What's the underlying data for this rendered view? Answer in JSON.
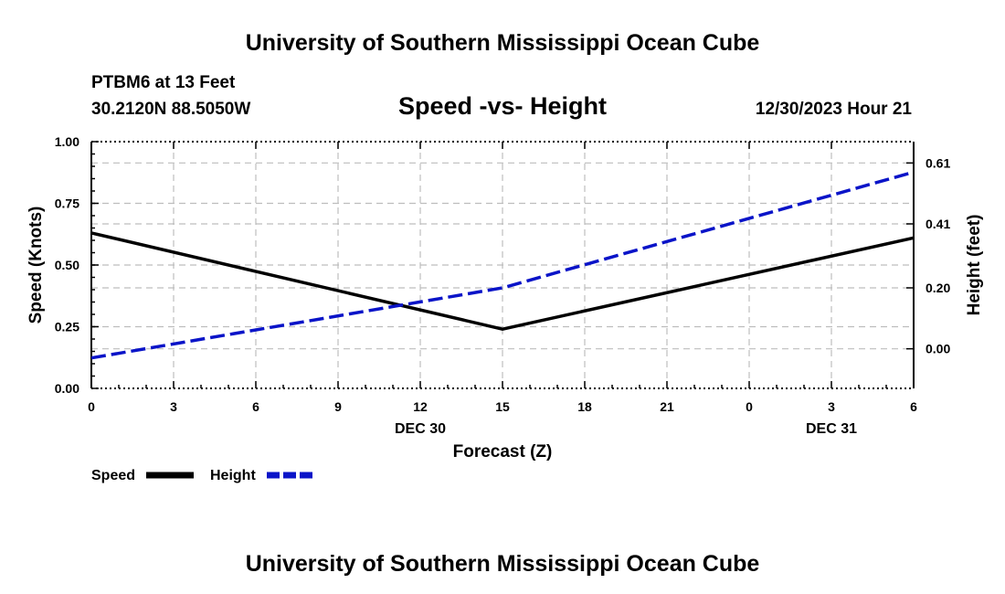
{
  "header": {
    "title": "University of Southern Mississippi Ocean Cube",
    "station": "PTBM6 at 13 Feet",
    "coords": "30.2120N  88.5050W",
    "datetime": "12/30/2023 Hour 21",
    "footer_title": "University of Southern Mississippi Ocean Cube"
  },
  "chart_data": {
    "type": "line",
    "title": "Speed -vs- Height",
    "xlabel": "Forecast (Z)",
    "ylabel": "Speed (Knots)",
    "y2label": "Height (feet)",
    "x": [
      0,
      3,
      6,
      9,
      12,
      15,
      18,
      21,
      24,
      27,
      30
    ],
    "x_tick_labels": [
      "0",
      "3",
      "6",
      "9",
      "12",
      "15",
      "18",
      "21",
      "0",
      "3",
      "6"
    ],
    "date_labels": [
      {
        "at": 12,
        "label": "DEC 30"
      },
      {
        "at": 27,
        "label": "DEC 31"
      }
    ],
    "xlim": [
      0,
      30
    ],
    "ylim": [
      0,
      1.0
    ],
    "y_ticks": [
      0.0,
      0.25,
      0.5,
      0.75,
      1.0
    ],
    "y_tick_labels": [
      "0.00",
      "0.25",
      "0.50",
      "0.75",
      "1.00"
    ],
    "y2lim": [
      -0.13,
      0.68
    ],
    "y2_ticks": [
      0.0,
      0.2,
      0.41,
      0.61
    ],
    "y2_tick_labels": [
      "0.00",
      "0.20",
      "0.41",
      "0.61"
    ],
    "grid": true,
    "legend_position": "bottom-left",
    "series": [
      {
        "name": "Speed",
        "axis": "left",
        "color": "#000000",
        "style": "solid",
        "x": [
          0,
          15,
          30
        ],
        "values": [
          0.63,
          0.24,
          0.61
        ]
      },
      {
        "name": "Height",
        "axis": "right",
        "color": "#0a14c8",
        "style": "dashed",
        "x": [
          0,
          15,
          30
        ],
        "values": [
          -0.03,
          0.2,
          0.58
        ]
      }
    ]
  }
}
